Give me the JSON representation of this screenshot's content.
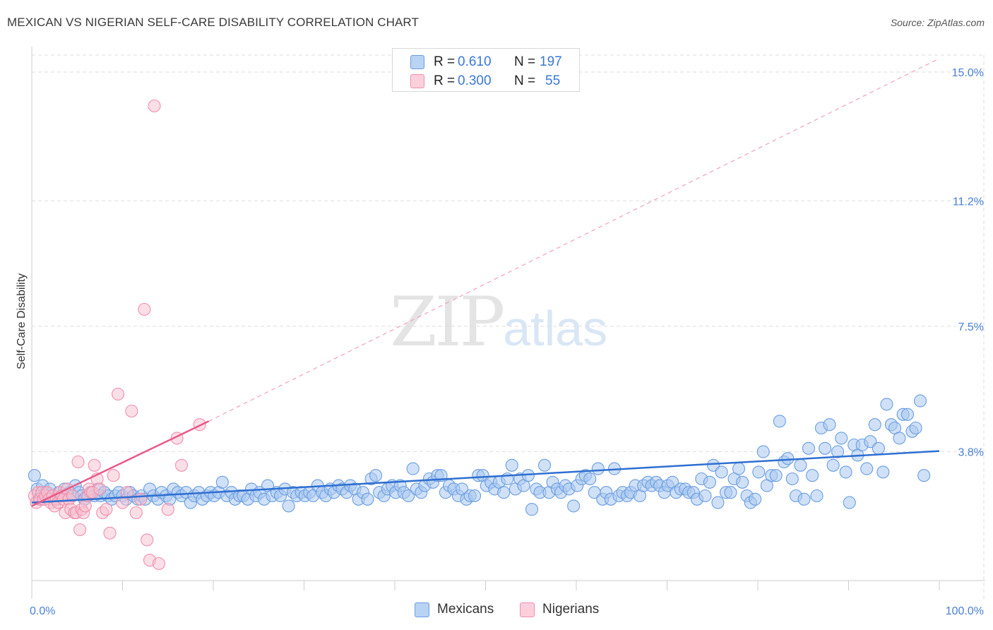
{
  "header": {
    "title": "MEXICAN VS NIGERIAN SELF-CARE DISABILITY CORRELATION CHART",
    "source": "Source: ZipAtlas.com"
  },
  "watermark": {
    "zip": "ZIP",
    "atlas": "atlas"
  },
  "legend_top": {
    "rows": [
      {
        "r_label": "R =",
        "r_value": "0.610",
        "n_label": "N =",
        "n_value": "197"
      },
      {
        "r_label": "R =",
        "r_value": "0.300",
        "n_label": "N =",
        "n_value": "55"
      }
    ]
  },
  "legend_bottom": {
    "items": [
      "Mexicans",
      "Nigerians"
    ]
  },
  "colors": {
    "mexicans_fill": "#a9c8f0",
    "mexicans_stroke": "#6a9de0",
    "mexicans_line": "#2f6fd0",
    "nigerians_fill": "#f7bfd0",
    "nigerians_stroke": "#ee8fac",
    "nigerians_line": "#e85a87",
    "tick_label": "#4a7fd0",
    "grid": "#dddddd"
  },
  "chart_data": {
    "type": "scatter",
    "title": "MEXICAN VS NIGERIAN SELF-CARE DISABILITY CORRELATION CHART",
    "xlabel": "",
    "ylabel": "Self-Care Disability",
    "xlim": [
      0,
      100
    ],
    "ylim": [
      0.0,
      15.5
    ],
    "x_tick_labels": [
      "0.0%",
      "100.0%"
    ],
    "y_ticks": [
      3.8,
      7.5,
      11.2,
      15.0
    ],
    "y_tick_labels": [
      "3.8%",
      "7.5%",
      "11.2%",
      "15.0%"
    ],
    "grid": true,
    "legend_position": "top-center",
    "series": [
      {
        "name": "Mexicans",
        "r": 0.61,
        "n": 197,
        "trend": {
          "x0": 0,
          "y0": 2.3,
          "x1": 100,
          "y1": 3.82
        },
        "points": [
          [
            0.3,
            3.1
          ],
          [
            0.6,
            2.7
          ],
          [
            0.8,
            2.4
          ],
          [
            1.0,
            2.5
          ],
          [
            1.2,
            2.8
          ],
          [
            1.5,
            2.6
          ],
          [
            1.8,
            2.5
          ],
          [
            2.0,
            2.7
          ],
          [
            2.3,
            2.5
          ],
          [
            2.6,
            2.4
          ],
          [
            3.0,
            2.6
          ],
          [
            3.3,
            2.5
          ],
          [
            3.6,
            2.7
          ],
          [
            3.9,
            2.5
          ],
          [
            4.2,
            2.6
          ],
          [
            4.5,
            2.5
          ],
          [
            4.8,
            2.8
          ],
          [
            5.2,
            2.6
          ],
          [
            5.5,
            2.5
          ],
          [
            5.8,
            2.4
          ],
          [
            6.2,
            2.5
          ],
          [
            6.5,
            2.6
          ],
          [
            6.9,
            2.5
          ],
          [
            7.3,
            2.7
          ],
          [
            7.6,
            2.5
          ],
          [
            8.0,
            2.6
          ],
          [
            8.4,
            2.5
          ],
          [
            8.8,
            2.4
          ],
          [
            9.2,
            2.5
          ],
          [
            9.6,
            2.6
          ],
          [
            10.0,
            2.5
          ],
          [
            10.4,
            2.4
          ],
          [
            10.8,
            2.6
          ],
          [
            11.2,
            2.5
          ],
          [
            11.7,
            2.4
          ],
          [
            12.1,
            2.5
          ],
          [
            12.5,
            2.4
          ],
          [
            13.0,
            2.7
          ],
          [
            13.4,
            2.5
          ],
          [
            13.9,
            2.4
          ],
          [
            14.3,
            2.6
          ],
          [
            14.8,
            2.5
          ],
          [
            15.2,
            2.4
          ],
          [
            15.6,
            2.7
          ],
          [
            16.1,
            2.6
          ],
          [
            16.5,
            2.5
          ],
          [
            17.0,
            2.6
          ],
          [
            17.5,
            2.3
          ],
          [
            17.9,
            2.5
          ],
          [
            18.4,
            2.6
          ],
          [
            18.8,
            2.4
          ],
          [
            19.3,
            2.5
          ],
          [
            19.7,
            2.6
          ],
          [
            20.1,
            2.5
          ],
          [
            20.6,
            2.6
          ],
          [
            21.0,
            2.9
          ],
          [
            21.5,
            2.5
          ],
          [
            22.0,
            2.6
          ],
          [
            22.4,
            2.4
          ],
          [
            22.9,
            2.5
          ],
          [
            23.3,
            2.5
          ],
          [
            23.8,
            2.4
          ],
          [
            24.2,
            2.7
          ],
          [
            24.7,
            2.5
          ],
          [
            25.1,
            2.6
          ],
          [
            25.6,
            2.4
          ],
          [
            26.0,
            2.8
          ],
          [
            26.5,
            2.5
          ],
          [
            27.0,
            2.6
          ],
          [
            27.4,
            2.5
          ],
          [
            27.9,
            2.7
          ],
          [
            28.3,
            2.2
          ],
          [
            28.8,
            2.6
          ],
          [
            29.2,
            2.5
          ],
          [
            29.7,
            2.6
          ],
          [
            30.1,
            2.5
          ],
          [
            30.6,
            2.6
          ],
          [
            31.0,
            2.5
          ],
          [
            31.5,
            2.8
          ],
          [
            32.0,
            2.6
          ],
          [
            32.4,
            2.5
          ],
          [
            32.9,
            2.7
          ],
          [
            33.3,
            2.6
          ],
          [
            33.8,
            2.8
          ],
          [
            34.2,
            2.7
          ],
          [
            34.7,
            2.6
          ],
          [
            35.1,
            2.8
          ],
          [
            35.6,
            2.7
          ],
          [
            36.0,
            2.4
          ],
          [
            36.5,
            2.6
          ],
          [
            37.0,
            2.4
          ],
          [
            37.4,
            3.0
          ],
          [
            37.9,
            3.1
          ],
          [
            38.3,
            2.6
          ],
          [
            38.8,
            2.5
          ],
          [
            39.2,
            2.7
          ],
          [
            39.7,
            2.8
          ],
          [
            40.1,
            2.6
          ],
          [
            40.6,
            2.8
          ],
          [
            41.0,
            2.6
          ],
          [
            41.5,
            2.5
          ],
          [
            42.0,
            3.3
          ],
          [
            42.4,
            2.7
          ],
          [
            42.9,
            2.6
          ],
          [
            43.3,
            2.8
          ],
          [
            43.8,
            3.0
          ],
          [
            44.2,
            2.9
          ],
          [
            44.7,
            3.1
          ],
          [
            45.1,
            3.1
          ],
          [
            45.6,
            2.6
          ],
          [
            46.0,
            2.8
          ],
          [
            46.5,
            2.7
          ],
          [
            47.0,
            2.5
          ],
          [
            47.4,
            2.7
          ],
          [
            47.9,
            2.4
          ],
          [
            48.3,
            2.5
          ],
          [
            48.8,
            2.5
          ],
          [
            49.2,
            3.1
          ],
          [
            49.7,
            3.1
          ],
          [
            50.1,
            2.8
          ],
          [
            50.6,
            2.9
          ],
          [
            51.0,
            2.7
          ],
          [
            51.5,
            2.9
          ],
          [
            52.0,
            2.6
          ],
          [
            52.4,
            3.0
          ],
          [
            52.9,
            3.4
          ],
          [
            53.3,
            2.7
          ],
          [
            53.8,
            3.0
          ],
          [
            54.2,
            2.8
          ],
          [
            54.7,
            3.1
          ],
          [
            55.1,
            2.1
          ],
          [
            55.6,
            2.7
          ],
          [
            56.0,
            2.6
          ],
          [
            56.5,
            3.4
          ],
          [
            57.0,
            2.6
          ],
          [
            57.4,
            2.9
          ],
          [
            57.9,
            2.7
          ],
          [
            58.3,
            2.6
          ],
          [
            58.8,
            2.8
          ],
          [
            59.2,
            2.7
          ],
          [
            59.7,
            2.2
          ],
          [
            60.1,
            2.8
          ],
          [
            60.6,
            3.0
          ],
          [
            61.0,
            3.1
          ],
          [
            61.5,
            3.0
          ],
          [
            62.0,
            2.6
          ],
          [
            62.4,
            3.3
          ],
          [
            62.9,
            2.4
          ],
          [
            63.3,
            2.6
          ],
          [
            63.8,
            2.4
          ],
          [
            64.2,
            3.3
          ],
          [
            64.7,
            2.5
          ],
          [
            65.1,
            2.6
          ],
          [
            65.6,
            2.5
          ],
          [
            66.0,
            2.6
          ],
          [
            66.5,
            2.8
          ],
          [
            67.0,
            2.5
          ],
          [
            67.4,
            2.8
          ],
          [
            67.9,
            2.9
          ],
          [
            68.3,
            2.8
          ],
          [
            68.8,
            2.9
          ],
          [
            69.2,
            2.8
          ],
          [
            69.7,
            2.6
          ],
          [
            70.1,
            2.8
          ],
          [
            70.6,
            2.9
          ],
          [
            71.0,
            2.6
          ],
          [
            71.5,
            2.7
          ],
          [
            72.0,
            2.7
          ],
          [
            72.4,
            2.6
          ],
          [
            72.9,
            2.6
          ],
          [
            73.3,
            2.4
          ],
          [
            73.8,
            3.0
          ],
          [
            74.2,
            2.5
          ],
          [
            74.7,
            2.9
          ],
          [
            75.1,
            3.4
          ],
          [
            75.6,
            2.3
          ],
          [
            76.0,
            3.2
          ],
          [
            76.5,
            2.6
          ],
          [
            77.0,
            2.6
          ],
          [
            77.4,
            3.0
          ],
          [
            77.9,
            3.3
          ],
          [
            78.3,
            2.9
          ],
          [
            78.8,
            2.5
          ],
          [
            79.2,
            2.3
          ],
          [
            79.7,
            2.4
          ],
          [
            80.1,
            3.2
          ],
          [
            80.6,
            3.8
          ],
          [
            81.0,
            2.8
          ],
          [
            81.5,
            3.1
          ],
          [
            82.0,
            3.1
          ],
          [
            82.4,
            4.7
          ],
          [
            82.9,
            3.5
          ],
          [
            83.3,
            3.6
          ],
          [
            83.8,
            3.0
          ],
          [
            84.2,
            2.5
          ],
          [
            84.7,
            3.4
          ],
          [
            85.1,
            2.4
          ],
          [
            85.6,
            3.9
          ],
          [
            86.0,
            3.1
          ],
          [
            86.5,
            2.5
          ],
          [
            87.0,
            4.5
          ],
          [
            87.4,
            3.9
          ],
          [
            87.9,
            4.6
          ],
          [
            88.3,
            3.4
          ],
          [
            88.8,
            3.8
          ],
          [
            89.2,
            4.2
          ],
          [
            89.7,
            3.2
          ],
          [
            90.1,
            2.3
          ],
          [
            90.6,
            4.0
          ],
          [
            91.0,
            3.7
          ],
          [
            91.5,
            4.0
          ],
          [
            92.0,
            3.3
          ],
          [
            92.4,
            4.1
          ],
          [
            92.9,
            4.6
          ],
          [
            93.3,
            3.9
          ],
          [
            93.8,
            3.2
          ],
          [
            94.2,
            5.2
          ],
          [
            94.7,
            4.6
          ],
          [
            95.1,
            4.5
          ],
          [
            95.6,
            4.2
          ],
          [
            96.0,
            4.9
          ],
          [
            96.5,
            4.9
          ],
          [
            97.0,
            4.4
          ],
          [
            97.4,
            4.5
          ],
          [
            97.9,
            5.3
          ],
          [
            98.3,
            3.1
          ]
        ]
      },
      {
        "name": "Nigerians",
        "r": 0.3,
        "n": 55,
        "trend": {
          "x0": 0,
          "y0": 2.2,
          "x1": 19.5,
          "y1": 4.7
        },
        "trend_extended": {
          "x0": 19.5,
          "y0": 4.7,
          "x1": 100,
          "y1": 15.4
        },
        "points": [
          [
            0.3,
            2.5
          ],
          [
            0.5,
            2.3
          ],
          [
            0.7,
            2.6
          ],
          [
            0.9,
            2.4
          ],
          [
            1.1,
            2.6
          ],
          [
            1.3,
            2.4
          ],
          [
            1.5,
            2.5
          ],
          [
            1.7,
            2.6
          ],
          [
            1.9,
            2.4
          ],
          [
            2.1,
            2.3
          ],
          [
            2.3,
            2.5
          ],
          [
            2.5,
            2.2
          ],
          [
            2.7,
            2.4
          ],
          [
            2.9,
            2.3
          ],
          [
            3.1,
            2.6
          ],
          [
            3.3,
            2.5
          ],
          [
            3.5,
            2.4
          ],
          [
            3.7,
            2.0
          ],
          [
            3.9,
            2.7
          ],
          [
            4.1,
            2.4
          ],
          [
            4.3,
            2.1
          ],
          [
            4.5,
            2.5
          ],
          [
            4.7,
            2.0
          ],
          [
            4.9,
            2.0
          ],
          [
            5.1,
            3.5
          ],
          [
            5.3,
            1.5
          ],
          [
            5.5,
            2.1
          ],
          [
            5.7,
            2.0
          ],
          [
            5.9,
            2.2
          ],
          [
            6.1,
            2.5
          ],
          [
            6.3,
            2.7
          ],
          [
            6.5,
            2.6
          ],
          [
            6.7,
            2.6
          ],
          [
            6.9,
            3.4
          ],
          [
            7.2,
            3.0
          ],
          [
            7.5,
            2.7
          ],
          [
            7.8,
            2.0
          ],
          [
            8.2,
            2.1
          ],
          [
            8.6,
            1.4
          ],
          [
            9.0,
            3.1
          ],
          [
            9.5,
            5.5
          ],
          [
            10.0,
            2.3
          ],
          [
            10.5,
            2.6
          ],
          [
            11.0,
            5.0
          ],
          [
            11.5,
            2.0
          ],
          [
            12.0,
            2.4
          ],
          [
            12.4,
            8.0
          ],
          [
            12.7,
            1.2
          ],
          [
            13.0,
            0.6
          ],
          [
            13.5,
            14.0
          ],
          [
            14.0,
            0.5
          ],
          [
            15.0,
            2.1
          ],
          [
            16.0,
            4.2
          ],
          [
            16.5,
            3.4
          ],
          [
            18.5,
            4.6
          ]
        ]
      }
    ]
  }
}
